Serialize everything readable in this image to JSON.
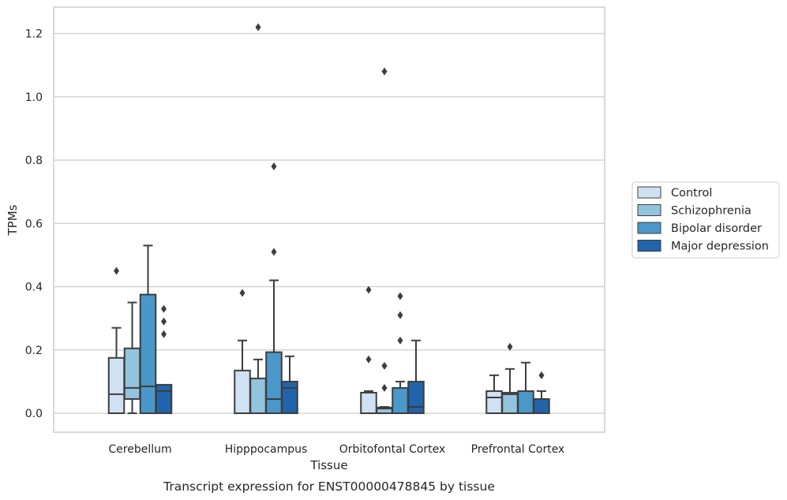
{
  "chart_data": {
    "type": "box",
    "caption": "Transcript expression for ENST00000478845 by tissue",
    "xlabel": "Tissue",
    "ylabel": "TPMs",
    "ylim": [
      -0.06,
      1.28
    ],
    "yticks": [
      0.0,
      0.2,
      0.4,
      0.6,
      0.8,
      1.0,
      1.2
    ],
    "ytick_labels": [
      "0.0",
      "0.2",
      "0.4",
      "0.6",
      "0.8",
      "1.0",
      "1.2"
    ],
    "grid": "horizontal",
    "legend_position": "right",
    "categories": [
      "Cerebellum",
      "Hipppocampus",
      "Orbitofontal Cortex",
      "Prefrontal Cortex"
    ],
    "series": [
      {
        "name": "Control",
        "color": "#cfe1f2",
        "boxes": [
          {
            "min": 0.0,
            "q1": 0.0,
            "median": 0.06,
            "q3": 0.175,
            "max": 0.27,
            "outliers": [
              0.45
            ]
          },
          {
            "min": 0.0,
            "q1": 0.0,
            "median": 0.0,
            "q3": 0.135,
            "max": 0.23,
            "outliers": [
              0.38
            ]
          },
          {
            "min": 0.0,
            "q1": 0.0,
            "median": 0.0,
            "q3": 0.065,
            "max": 0.07,
            "outliers": [
              0.17,
              0.39
            ]
          },
          {
            "min": 0.0,
            "q1": 0.0,
            "median": 0.05,
            "q3": 0.07,
            "max": 0.12,
            "outliers": []
          }
        ]
      },
      {
        "name": "Schizophrenia",
        "color": "#93c4de",
        "boxes": [
          {
            "min": 0.0,
            "q1": 0.045,
            "median": 0.08,
            "q3": 0.205,
            "max": 0.35,
            "outliers": []
          },
          {
            "min": 0.0,
            "q1": 0.0,
            "median": 0.0,
            "q3": 0.11,
            "max": 0.17,
            "outliers": [
              1.22
            ]
          },
          {
            "min": 0.0,
            "q1": 0.0,
            "median": 0.015,
            "q3": 0.018,
            "max": 0.02,
            "outliers": [
              0.08,
              0.15,
              1.08
            ]
          },
          {
            "min": 0.0,
            "q1": 0.0,
            "median": 0.06,
            "q3": 0.065,
            "max": 0.14,
            "outliers": [
              0.21
            ]
          }
        ]
      },
      {
        "name": "Bipolar disorder",
        "color": "#4a98c9",
        "boxes": [
          {
            "min": 0.0,
            "q1": 0.0,
            "median": 0.085,
            "q3": 0.375,
            "max": 0.53,
            "outliers": []
          },
          {
            "min": 0.0,
            "q1": 0.0,
            "median": 0.045,
            "q3": 0.193,
            "max": 0.42,
            "outliers": [
              0.51,
              0.78
            ]
          },
          {
            "min": 0.0,
            "q1": 0.0,
            "median": 0.0,
            "q3": 0.08,
            "max": 0.1,
            "outliers": [
              0.23,
              0.31,
              0.37
            ]
          },
          {
            "min": 0.0,
            "q1": 0.0,
            "median": 0.0,
            "q3": 0.07,
            "max": 0.16,
            "outliers": []
          }
        ]
      },
      {
        "name": "Major depression",
        "color": "#2164ab",
        "boxes": [
          {
            "min": 0.0,
            "q1": 0.0,
            "median": 0.07,
            "q3": 0.09,
            "max": 0.09,
            "outliers": [
              0.25,
              0.29,
              0.33
            ]
          },
          {
            "min": 0.0,
            "q1": 0.0,
            "median": 0.08,
            "q3": 0.1,
            "max": 0.18,
            "outliers": []
          },
          {
            "min": 0.0,
            "q1": 0.0,
            "median": 0.02,
            "q3": 0.1,
            "max": 0.23,
            "outliers": []
          },
          {
            "min": 0.0,
            "q1": 0.0,
            "median": 0.0,
            "q3": 0.045,
            "max": 0.07,
            "outliers": [
              0.12
            ]
          }
        ]
      }
    ]
  }
}
